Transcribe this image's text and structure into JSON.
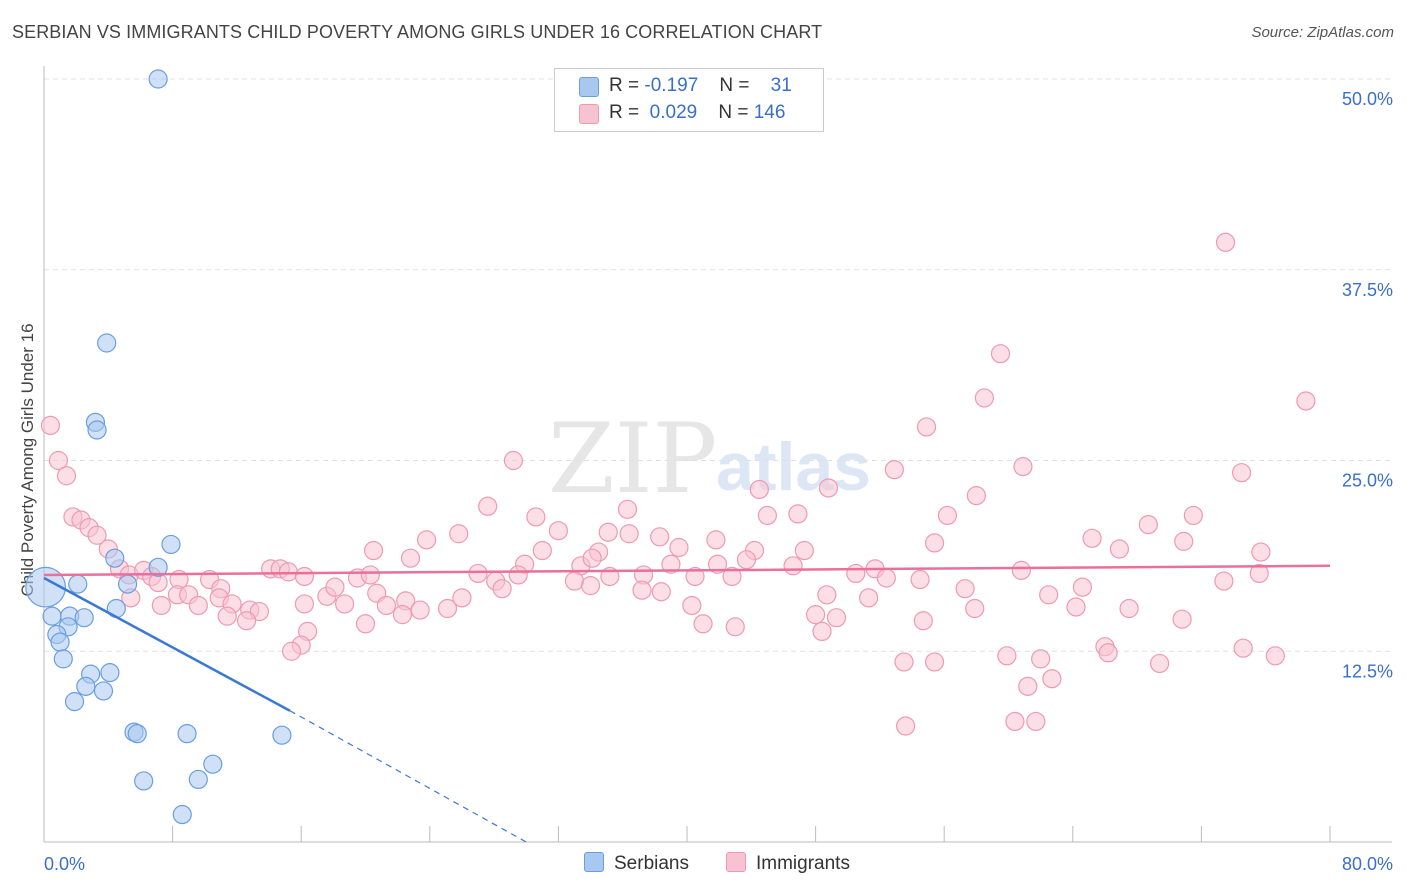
{
  "title": "SERBIAN VS IMMIGRANTS CHILD POVERTY AMONG GIRLS UNDER 16 CORRELATION CHART",
  "source": "Source: ZipAtlas.com",
  "watermark": {
    "zip": "ZIP",
    "atlas": "atlas"
  },
  "legend": {
    "r_label": "R =",
    "n_label": "N =",
    "serbians": {
      "r": "-0.197",
      "n": "31"
    },
    "immigrants": {
      "r": "0.029",
      "n": "146"
    }
  },
  "bottom_legend": {
    "serbians": "Serbians",
    "immigrants": "Immigrants"
  },
  "colors": {
    "serbians_fill": "#a9c8f0",
    "serbians_stroke": "#6a9ee0",
    "serbians_line": "#3a78d6",
    "immigrants_fill": "#f7c3d2",
    "immigrants_stroke": "#ee9ab4",
    "immigrants_line": "#e8709a",
    "tick_label": "#3a6fc9",
    "grid": "#dde0e6"
  },
  "chart_data": {
    "type": "scatter",
    "title": "SERBIAN VS IMMIGRANTS CHILD POVERTY AMONG GIRLS UNDER 16 CORRELATION CHART",
    "xlabel": "",
    "ylabel": "Child Poverty Among Girls Under 16",
    "xlim": [
      0,
      80
    ],
    "ylim": [
      0,
      50
    ],
    "x_tick_labels": [
      "0.0%",
      "80.0%"
    ],
    "y_ticks": [
      12.5,
      25.0,
      37.5,
      50.0
    ],
    "y_tick_labels": [
      "12.5%",
      "25.0%",
      "37.5%",
      "50.0%"
    ],
    "grid": true,
    "legend_position": "top-center",
    "series": [
      {
        "name": "Serbians",
        "r": -0.197,
        "n": 31,
        "trend": {
          "x0": 0,
          "y0": 17.3,
          "x1": 15.3,
          "y1": 8.6,
          "dash_to_x": 30,
          "dash_to_y": 0
        },
        "points": [
          [
            0.1,
            16.7,
            2.2
          ],
          [
            7.1,
            50.0,
            1
          ],
          [
            3.9,
            32.7,
            1
          ],
          [
            3.2,
            27.5,
            1
          ],
          [
            3.3,
            27.0,
            1
          ],
          [
            7.9,
            19.5,
            1
          ],
          [
            4.4,
            18.6,
            1
          ],
          [
            7.1,
            18.0,
            1
          ],
          [
            2.1,
            16.9,
            1
          ],
          [
            5.2,
            16.9,
            1
          ],
          [
            4.5,
            15.3,
            1
          ],
          [
            0.5,
            14.8,
            1
          ],
          [
            1.6,
            14.8,
            1
          ],
          [
            2.5,
            14.7,
            1
          ],
          [
            1.5,
            14.1,
            1
          ],
          [
            0.8,
            13.6,
            1
          ],
          [
            1.0,
            13.1,
            1
          ],
          [
            1.2,
            12.0,
            1
          ],
          [
            2.9,
            11.0,
            1
          ],
          [
            4.1,
            11.1,
            1
          ],
          [
            2.6,
            10.2,
            1
          ],
          [
            3.7,
            9.9,
            1
          ],
          [
            1.9,
            9.2,
            1
          ],
          [
            5.6,
            7.2,
            1
          ],
          [
            5.8,
            7.1,
            1
          ],
          [
            8.9,
            7.1,
            1
          ],
          [
            14.8,
            7.0,
            1
          ],
          [
            10.5,
            5.1,
            1
          ],
          [
            6.2,
            4.0,
            1
          ],
          [
            9.6,
            4.1,
            1
          ],
          [
            8.6,
            1.8,
            1
          ]
        ]
      },
      {
        "name": "Immigrants",
        "r": 0.029,
        "n": 146,
        "trend": {
          "x0": 0,
          "y0": 17.5,
          "x1": 80,
          "y1": 18.1
        },
        "points": [
          [
            73.5,
            39.3,
            1
          ],
          [
            59.5,
            32.0,
            1
          ],
          [
            58.5,
            29.1,
            1
          ],
          [
            78.5,
            28.9,
            1
          ],
          [
            54.9,
            27.2,
            1
          ],
          [
            0.4,
            27.3,
            1
          ],
          [
            0.9,
            25.0,
            1
          ],
          [
            1.4,
            24.0,
            1
          ],
          [
            29.2,
            25.0,
            1
          ],
          [
            52.9,
            24.4,
            1
          ],
          [
            60.9,
            24.6,
            1
          ],
          [
            74.5,
            24.2,
            1
          ],
          [
            44.5,
            23.1,
            1
          ],
          [
            48.8,
            23.2,
            1
          ],
          [
            27.6,
            22.0,
            1
          ],
          [
            58.0,
            22.7,
            1
          ],
          [
            1.8,
            21.3,
            1
          ],
          [
            2.3,
            21.1,
            1
          ],
          [
            36.3,
            21.8,
            1
          ],
          [
            30.6,
            21.3,
            1
          ],
          [
            45.0,
            21.4,
            1
          ],
          [
            46.9,
            21.5,
            1
          ],
          [
            56.2,
            21.4,
            1
          ],
          [
            71.5,
            21.4,
            1
          ],
          [
            2.8,
            20.6,
            1
          ],
          [
            3.3,
            20.1,
            1
          ],
          [
            32.0,
            20.4,
            1
          ],
          [
            36.4,
            20.2,
            1
          ],
          [
            35.1,
            20.3,
            1
          ],
          [
            38.3,
            20.0,
            1
          ],
          [
            41.8,
            19.8,
            1
          ],
          [
            25.8,
            20.2,
            1
          ],
          [
            23.8,
            19.8,
            1
          ],
          [
            65.2,
            19.9,
            1
          ],
          [
            68.7,
            20.8,
            1
          ],
          [
            70.9,
            19.7,
            1
          ],
          [
            4.0,
            19.2,
            1
          ],
          [
            20.5,
            19.1,
            1
          ],
          [
            31.0,
            19.1,
            1
          ],
          [
            34.5,
            19.0,
            1
          ],
          [
            39.5,
            19.3,
            1
          ],
          [
            44.2,
            19.1,
            1
          ],
          [
            47.3,
            19.1,
            1
          ],
          [
            55.4,
            19.6,
            1
          ],
          [
            66.9,
            19.2,
            1
          ],
          [
            75.7,
            19.0,
            1
          ],
          [
            4.7,
            17.9,
            1
          ],
          [
            5.3,
            17.5,
            1
          ],
          [
            6.2,
            17.8,
            1
          ],
          [
            22.8,
            18.6,
            1
          ],
          [
            29.9,
            18.2,
            1
          ],
          [
            33.4,
            18.1,
            1
          ],
          [
            34.1,
            18.6,
            1
          ],
          [
            39.0,
            18.2,
            1
          ],
          [
            41.9,
            18.2,
            1
          ],
          [
            43.7,
            18.5,
            1
          ],
          [
            46.6,
            18.1,
            1
          ],
          [
            51.7,
            17.9,
            1
          ],
          [
            60.8,
            17.8,
            1
          ],
          [
            14.1,
            17.9,
            1
          ],
          [
            14.7,
            17.9,
            1
          ],
          [
            15.2,
            17.7,
            1
          ],
          [
            16.2,
            17.4,
            1
          ],
          [
            6.7,
            17.4,
            1
          ],
          [
            7.1,
            17.0,
            1
          ],
          [
            8.4,
            17.2,
            1
          ],
          [
            10.3,
            17.2,
            1
          ],
          [
            11.0,
            16.6,
            1
          ],
          [
            19.5,
            17.3,
            1
          ],
          [
            20.3,
            17.5,
            1
          ],
          [
            27.0,
            17.6,
            1
          ],
          [
            28.1,
            17.1,
            1
          ],
          [
            29.5,
            17.5,
            1
          ],
          [
            33.0,
            17.1,
            1
          ],
          [
            35.2,
            17.4,
            1
          ],
          [
            37.3,
            17.5,
            1
          ],
          [
            40.5,
            17.4,
            1
          ],
          [
            42.8,
            17.4,
            1
          ],
          [
            50.5,
            17.6,
            1
          ],
          [
            52.4,
            17.3,
            1
          ],
          [
            54.5,
            17.2,
            1
          ],
          [
            73.4,
            17.1,
            1
          ],
          [
            75.6,
            17.6,
            1
          ],
          [
            8.3,
            16.2,
            1
          ],
          [
            9.0,
            16.2,
            1
          ],
          [
            10.9,
            16.0,
            1
          ],
          [
            17.6,
            16.1,
            1
          ],
          [
            18.1,
            16.7,
            1
          ],
          [
            20.7,
            16.3,
            1
          ],
          [
            26.0,
            16.0,
            1
          ],
          [
            28.5,
            16.6,
            1
          ],
          [
            34.0,
            16.8,
            1
          ],
          [
            37.2,
            16.5,
            1
          ],
          [
            38.4,
            16.4,
            1
          ],
          [
            48.7,
            16.2,
            1
          ],
          [
            51.3,
            16.0,
            1
          ],
          [
            57.3,
            16.6,
            1
          ],
          [
            62.5,
            16.2,
            1
          ],
          [
            64.6,
            16.7,
            1
          ],
          [
            5.4,
            16.0,
            1
          ],
          [
            7.3,
            15.5,
            1
          ],
          [
            9.6,
            15.5,
            1
          ],
          [
            11.7,
            15.6,
            1
          ],
          [
            12.8,
            15.2,
            1
          ],
          [
            13.4,
            15.1,
            1
          ],
          [
            16.2,
            15.6,
            1
          ],
          [
            18.7,
            15.6,
            1
          ],
          [
            21.3,
            15.5,
            1
          ],
          [
            22.5,
            15.8,
            1
          ],
          [
            23.4,
            15.2,
            1
          ],
          [
            25.1,
            15.3,
            1
          ],
          [
            40.3,
            15.5,
            1
          ],
          [
            48.0,
            14.9,
            1
          ],
          [
            57.9,
            15.3,
            1
          ],
          [
            64.2,
            15.4,
            1
          ],
          [
            67.5,
            15.3,
            1
          ],
          [
            11.4,
            14.8,
            1
          ],
          [
            22.3,
            14.9,
            1
          ],
          [
            12.6,
            14.5,
            1
          ],
          [
            20.0,
            14.3,
            1
          ],
          [
            41.0,
            14.3,
            1
          ],
          [
            43.0,
            14.1,
            1
          ],
          [
            49.3,
            14.7,
            1
          ],
          [
            54.7,
            14.5,
            1
          ],
          [
            70.8,
            14.6,
            1
          ],
          [
            16.4,
            13.8,
            1
          ],
          [
            48.4,
            13.8,
            1
          ],
          [
            66.0,
            12.8,
            1
          ],
          [
            16.0,
            12.9,
            1
          ],
          [
            15.4,
            12.5,
            1
          ],
          [
            66.2,
            12.4,
            1
          ],
          [
            62.0,
            12.0,
            1
          ],
          [
            76.6,
            12.2,
            1
          ],
          [
            74.6,
            12.7,
            1
          ],
          [
            59.9,
            12.2,
            1
          ],
          [
            53.5,
            11.8,
            1
          ],
          [
            55.4,
            11.8,
            1
          ],
          [
            69.4,
            11.7,
            1
          ],
          [
            62.7,
            10.7,
            1
          ],
          [
            61.2,
            10.2,
            1
          ],
          [
            53.6,
            7.6,
            1
          ],
          [
            60.4,
            7.9,
            1
          ],
          [
            61.7,
            7.9,
            1
          ]
        ]
      }
    ]
  }
}
